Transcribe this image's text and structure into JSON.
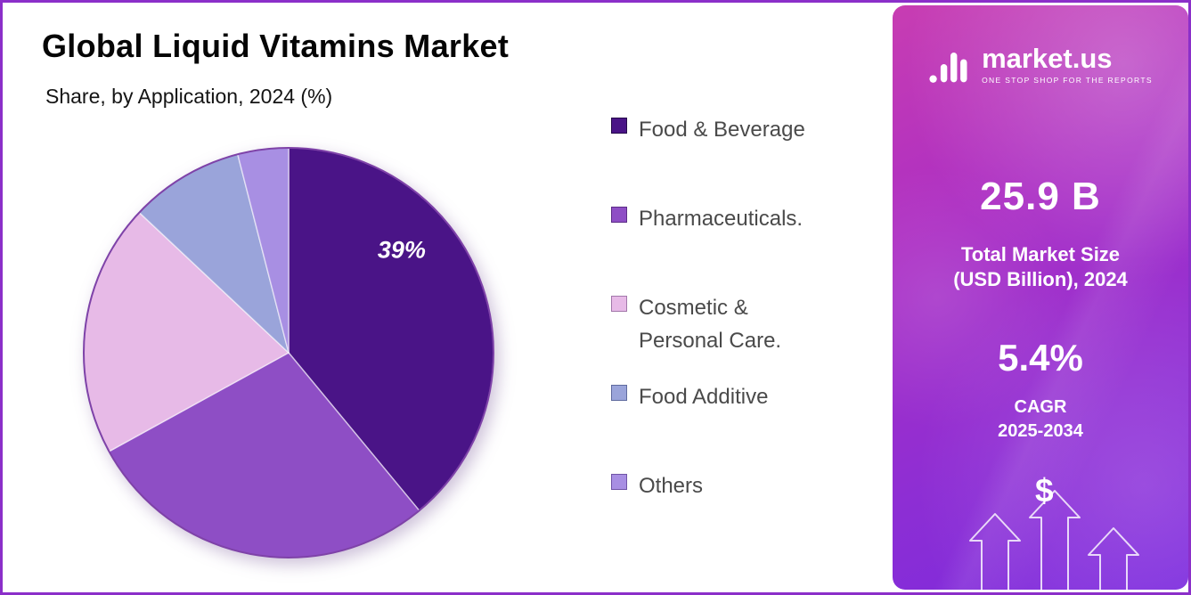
{
  "header": {
    "title": "Global Liquid Vitamins Market",
    "subtitle": "Share, by Application, 2024 (%)"
  },
  "chart_data": {
    "type": "pie",
    "title": "Global Liquid Vitamins Market",
    "subtitle": "Share, by Application, 2024 (%)",
    "unit": "percent share",
    "start_angle_deg": -90,
    "direction": "clockwise",
    "legend_position": "right",
    "slices": [
      {
        "label": "Food & Beverage",
        "value": 39,
        "color": "#4a1487",
        "swatch_border": "#26094a",
        "data_label": "39%",
        "label_angle_deg": 50,
        "label_radius_frac": 0.72
      },
      {
        "label": "Pharmaceuticals.",
        "value": 28,
        "color": "#8e4ec5",
        "swatch_border": "#5c2c87",
        "data_label": ""
      },
      {
        "label": "Cosmetic & Personal Care.",
        "value": 20,
        "color": "#e7bae7",
        "swatch_border": "#a277aa",
        "data_label": ""
      },
      {
        "label": "Food Additive",
        "value": 9,
        "color": "#9aa4da",
        "swatch_border": "#5f6a9e",
        "data_label": ""
      },
      {
        "label": "Others",
        "value": 4,
        "color": "#a88fe3",
        "swatch_border": "#6f54a6",
        "data_label": ""
      }
    ]
  },
  "side_panel": {
    "logo": {
      "name": "market.us",
      "tagline": "ONE STOP SHOP FOR THE REPORTS"
    },
    "market_size": {
      "value": "25.9 B",
      "label_line1": "Total Market Size",
      "label_line2": "(USD Billion), 2024"
    },
    "cagr": {
      "value": "5.4%",
      "label_line1": "CAGR",
      "label_line2": "2025-2034"
    },
    "dollar_symbol": "$"
  },
  "colors": {
    "frame_border": "#8b2fc9",
    "panel_gradient_start": "#c83db2",
    "panel_gradient_end": "#7a2ade",
    "pie_outline": "#7e42a8",
    "legend_text": "#4a4a4a",
    "slice_label_text": "#ffffff"
  }
}
